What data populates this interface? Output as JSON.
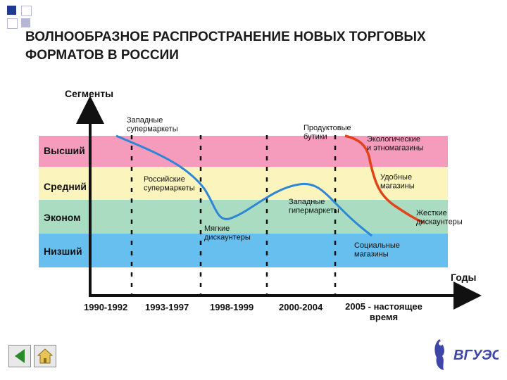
{
  "title": "ВОЛНООБРАЗНОЕ РАСПРОСТРАНЕНИЕ НОВЫХ ТОРГОВЫХ\nФОРМАТОВ В РОССИИ",
  "diagram": {
    "y_axis_label": "Сегменты",
    "x_axis_label": "Годы",
    "bands": [
      {
        "label": "Высший",
        "color": "#f59bbb"
      },
      {
        "label": "Средний",
        "color": "#fbf5bd"
      },
      {
        "label": "Эконом",
        "color": "#a9dcc0"
      },
      {
        "label": "Низший",
        "color": "#67bff0"
      }
    ],
    "periods": [
      "1990-1992",
      "1993-1997",
      "1998-1999",
      "2000-2004",
      "2005 - настоящее\nвремя"
    ],
    "annotations": [
      "Западные\nсупермаркеты",
      "Российские\nсупермаркеты",
      "Мягкие\nдискаунтеры",
      "Продуктовые\nбутики",
      "Западные\nгипермаркеты",
      "Экологические\nи этномагазины",
      "Удобные\nмагазины",
      "Жесткие\nдискаунтеры",
      "Социальные\nмагазины"
    ],
    "curve_colors": {
      "blue": "#2e86d6",
      "red": "#e2431a"
    }
  },
  "logo": {
    "text": "ВГУЭС"
  },
  "nav": {
    "back_label": "Назад",
    "home_label": "Домой"
  }
}
